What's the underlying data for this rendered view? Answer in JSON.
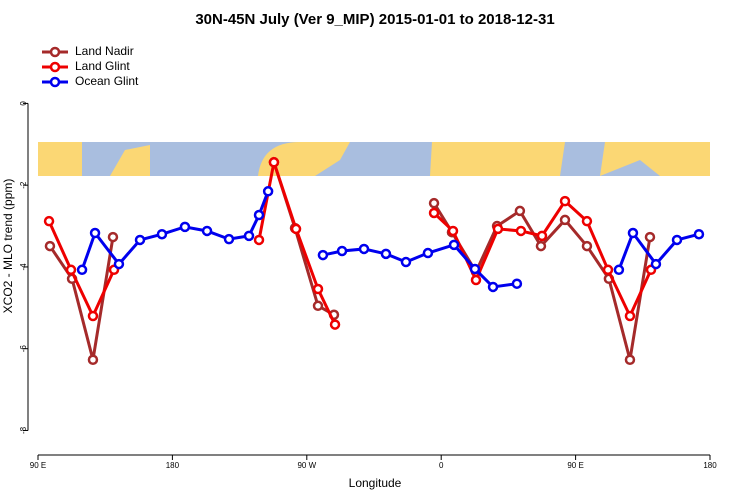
{
  "chart_data": {
    "type": "line",
    "title": "30N-45N July (Ver 9_MIP)   2015-01-01 to 2018-12-31",
    "x_label": "Longitude",
    "y_label": "XCO2 - MLO trend (ppm)",
    "xlim": [
      90,
      540
    ],
    "xticks": [
      {
        "value": 90,
        "label": "90 E"
      },
      180,
      {
        "value": 270,
        "label": "90 W"
      },
      {
        "value": 360,
        "label": "0"
      },
      {
        "value": 450,
        "label": "90 E"
      },
      {
        "value": 540,
        "label": "180"
      }
    ],
    "ylim": [
      -8.6,
      1.6
    ],
    "yticks": [
      0,
      -2,
      -4,
      -6,
      -8
    ],
    "legend": "top-left",
    "series": [
      {
        "name": "Land Nadir",
        "color": "#a52a2a",
        "x": [
          98.0,
          112.8,
          126.8,
          140.2,
          null,
          248.0,
          262.1,
          277.5,
          288.2,
          null,
          355.2,
          367.2,
          383.3,
          397.4,
          412.7,
          426.8,
          442.9,
          457.6,
          472.3,
          486.4,
          499.8
        ],
        "values": [
          -3.49,
          -4.29,
          -6.27,
          -3.27,
          null,
          -1.44,
          -3.05,
          -4.95,
          -5.17,
          null,
          -2.44,
          -3.15,
          -4.12,
          -3.0,
          -2.63,
          -3.49,
          -2.85,
          -3.49,
          -4.29,
          -6.27,
          -3.27
        ]
      },
      {
        "name": "Land Glint",
        "color": "#ee0000",
        "x": [
          97.4,
          112.1,
          126.8,
          140.9,
          null,
          238.0,
          248.0,
          262.8,
          277.5,
          288.9,
          null,
          355.2,
          367.9,
          383.3,
          398.0,
          413.4,
          427.5,
          442.9,
          457.6,
          471.7,
          486.4,
          500.5
        ],
        "values": [
          -2.88,
          -4.07,
          -5.2,
          -4.07,
          null,
          -3.34,
          -1.44,
          -3.07,
          -4.54,
          -5.41,
          null,
          -2.68,
          -3.12,
          -4.32,
          -3.07,
          -3.12,
          -3.24,
          -2.39,
          -2.88,
          -4.07,
          -5.2,
          -4.07
        ]
      },
      {
        "name": "Ocean Glint",
        "color": "#0000ee",
        "x": [
          119.5,
          128.2,
          144.2,
          158.3,
          173.0,
          188.4,
          203.2,
          217.9,
          231.3,
          238.0,
          244.1,
          null,
          280.8,
          293.6,
          308.3,
          323.0,
          336.4,
          351.1,
          368.6,
          382.6,
          394.7,
          410.7,
          null,
          479.0,
          488.4,
          503.8,
          517.9,
          532.6
        ],
        "values": [
          -4.07,
          -3.17,
          -3.93,
          -3.34,
          -3.2,
          -3.02,
          -3.12,
          -3.32,
          -3.24,
          -2.73,
          -2.15,
          null,
          -3.71,
          -3.61,
          -3.56,
          -3.68,
          -3.88,
          -3.66,
          -3.46,
          -4.05,
          -4.49,
          -4.41,
          null,
          -4.07,
          -3.17,
          -3.93,
          -3.34,
          -3.2
        ]
      }
    ]
  }
}
